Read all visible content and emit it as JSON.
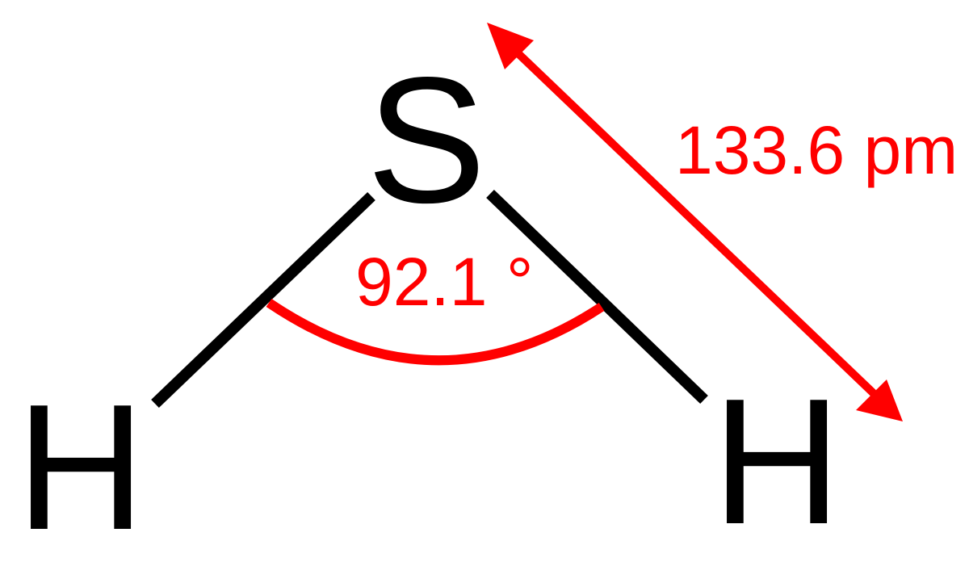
{
  "diagram": {
    "atoms": {
      "central": "S",
      "left": "H",
      "right": "H"
    },
    "bond_angle_label": "92.1 °",
    "bond_length_label": "133.6 pm",
    "colors": {
      "bonds_and_atoms": "#000000",
      "annotations": "#ff0000"
    }
  }
}
